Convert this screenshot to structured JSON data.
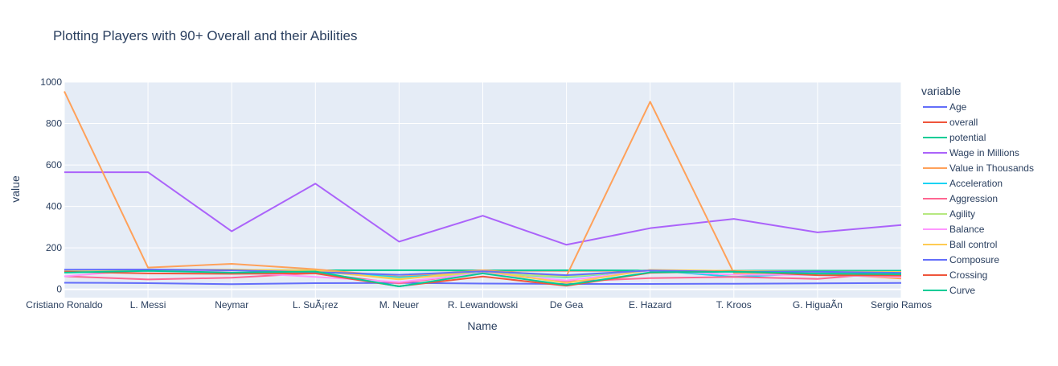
{
  "chart_data": {
    "type": "line",
    "title": "Plotting Players with 90+ Overall and their Abilities",
    "xlabel": "Name",
    "ylabel": "value",
    "legend_title": "variable",
    "legend_position": "right",
    "grid": true,
    "ylim": [
      -40,
      1000
    ],
    "yticks": [
      0,
      200,
      400,
      600,
      800,
      1000
    ],
    "categories": [
      "Cristiano Ronaldo",
      "L. Messi",
      "Neymar",
      "L. SuÃ¡rez",
      "M. Neuer",
      "R. Lewandowski",
      "De Gea",
      "E. Hazard",
      "T. Kroos",
      "G. HiguaÃn",
      "Sergio Ramos"
    ],
    "series": [
      {
        "name": "Age",
        "color": "#636efa",
        "values": [
          32,
          30,
          25,
          30,
          31,
          28,
          26,
          26,
          27,
          29,
          31
        ]
      },
      {
        "name": "overall",
        "color": "#EF553B",
        "values": [
          94,
          93,
          92,
          92,
          92,
          91,
          90,
          90,
          90,
          90,
          90
        ]
      },
      {
        "name": "potential",
        "color": "#00cc96",
        "values": [
          94,
          93,
          94,
          92,
          92,
          91,
          92,
          91,
          90,
          90,
          90
        ]
      },
      {
        "name": "Wage in Millions",
        "color": "#ab63fa",
        "values": [
          565,
          565,
          280,
          510,
          230,
          355,
          215,
          295,
          340,
          275,
          310
        ]
      },
      {
        "name": "Value in Thousands",
        "color": "#FFA15A",
        "values": [
          955,
          105,
          123,
          97,
          61,
          92,
          64,
          905,
          79,
          77,
          52
        ]
      },
      {
        "name": "Acceleration",
        "color": "#19d3f3",
        "values": [
          89,
          92,
          94,
          88,
          58,
          79,
          57,
          93,
          60,
          78,
          75
        ]
      },
      {
        "name": "Aggression",
        "color": "#FF6692",
        "values": [
          63,
          48,
          56,
          78,
          29,
          80,
          38,
          54,
          60,
          50,
          84
        ]
      },
      {
        "name": "Agility",
        "color": "#B6E880",
        "values": [
          89,
          90,
          96,
          86,
          52,
          78,
          60,
          93,
          70,
          75,
          79
        ]
      },
      {
        "name": "Balance",
        "color": "#FF97FF",
        "values": [
          63,
          95,
          82,
          60,
          35,
          78,
          43,
          91,
          71,
          69,
          60
        ]
      },
      {
        "name": "Ball control",
        "color": "#FECB52",
        "values": [
          93,
          95,
          95,
          91,
          48,
          89,
          31,
          94,
          89,
          85,
          84
        ]
      },
      {
        "name": "Composure",
        "color": "#636efa",
        "values": [
          95,
          96,
          92,
          83,
          70,
          87,
          68,
          91,
          85,
          85,
          80
        ]
      },
      {
        "name": "Crossing",
        "color": "#EF553B",
        "values": [
          85,
          77,
          75,
          77,
          15,
          62,
          17,
          80,
          87,
          68,
          66
        ]
      },
      {
        "name": "Curve",
        "color": "#00cc96",
        "values": [
          81,
          89,
          81,
          86,
          14,
          77,
          21,
          82,
          85,
          76,
          73
        ]
      }
    ]
  }
}
